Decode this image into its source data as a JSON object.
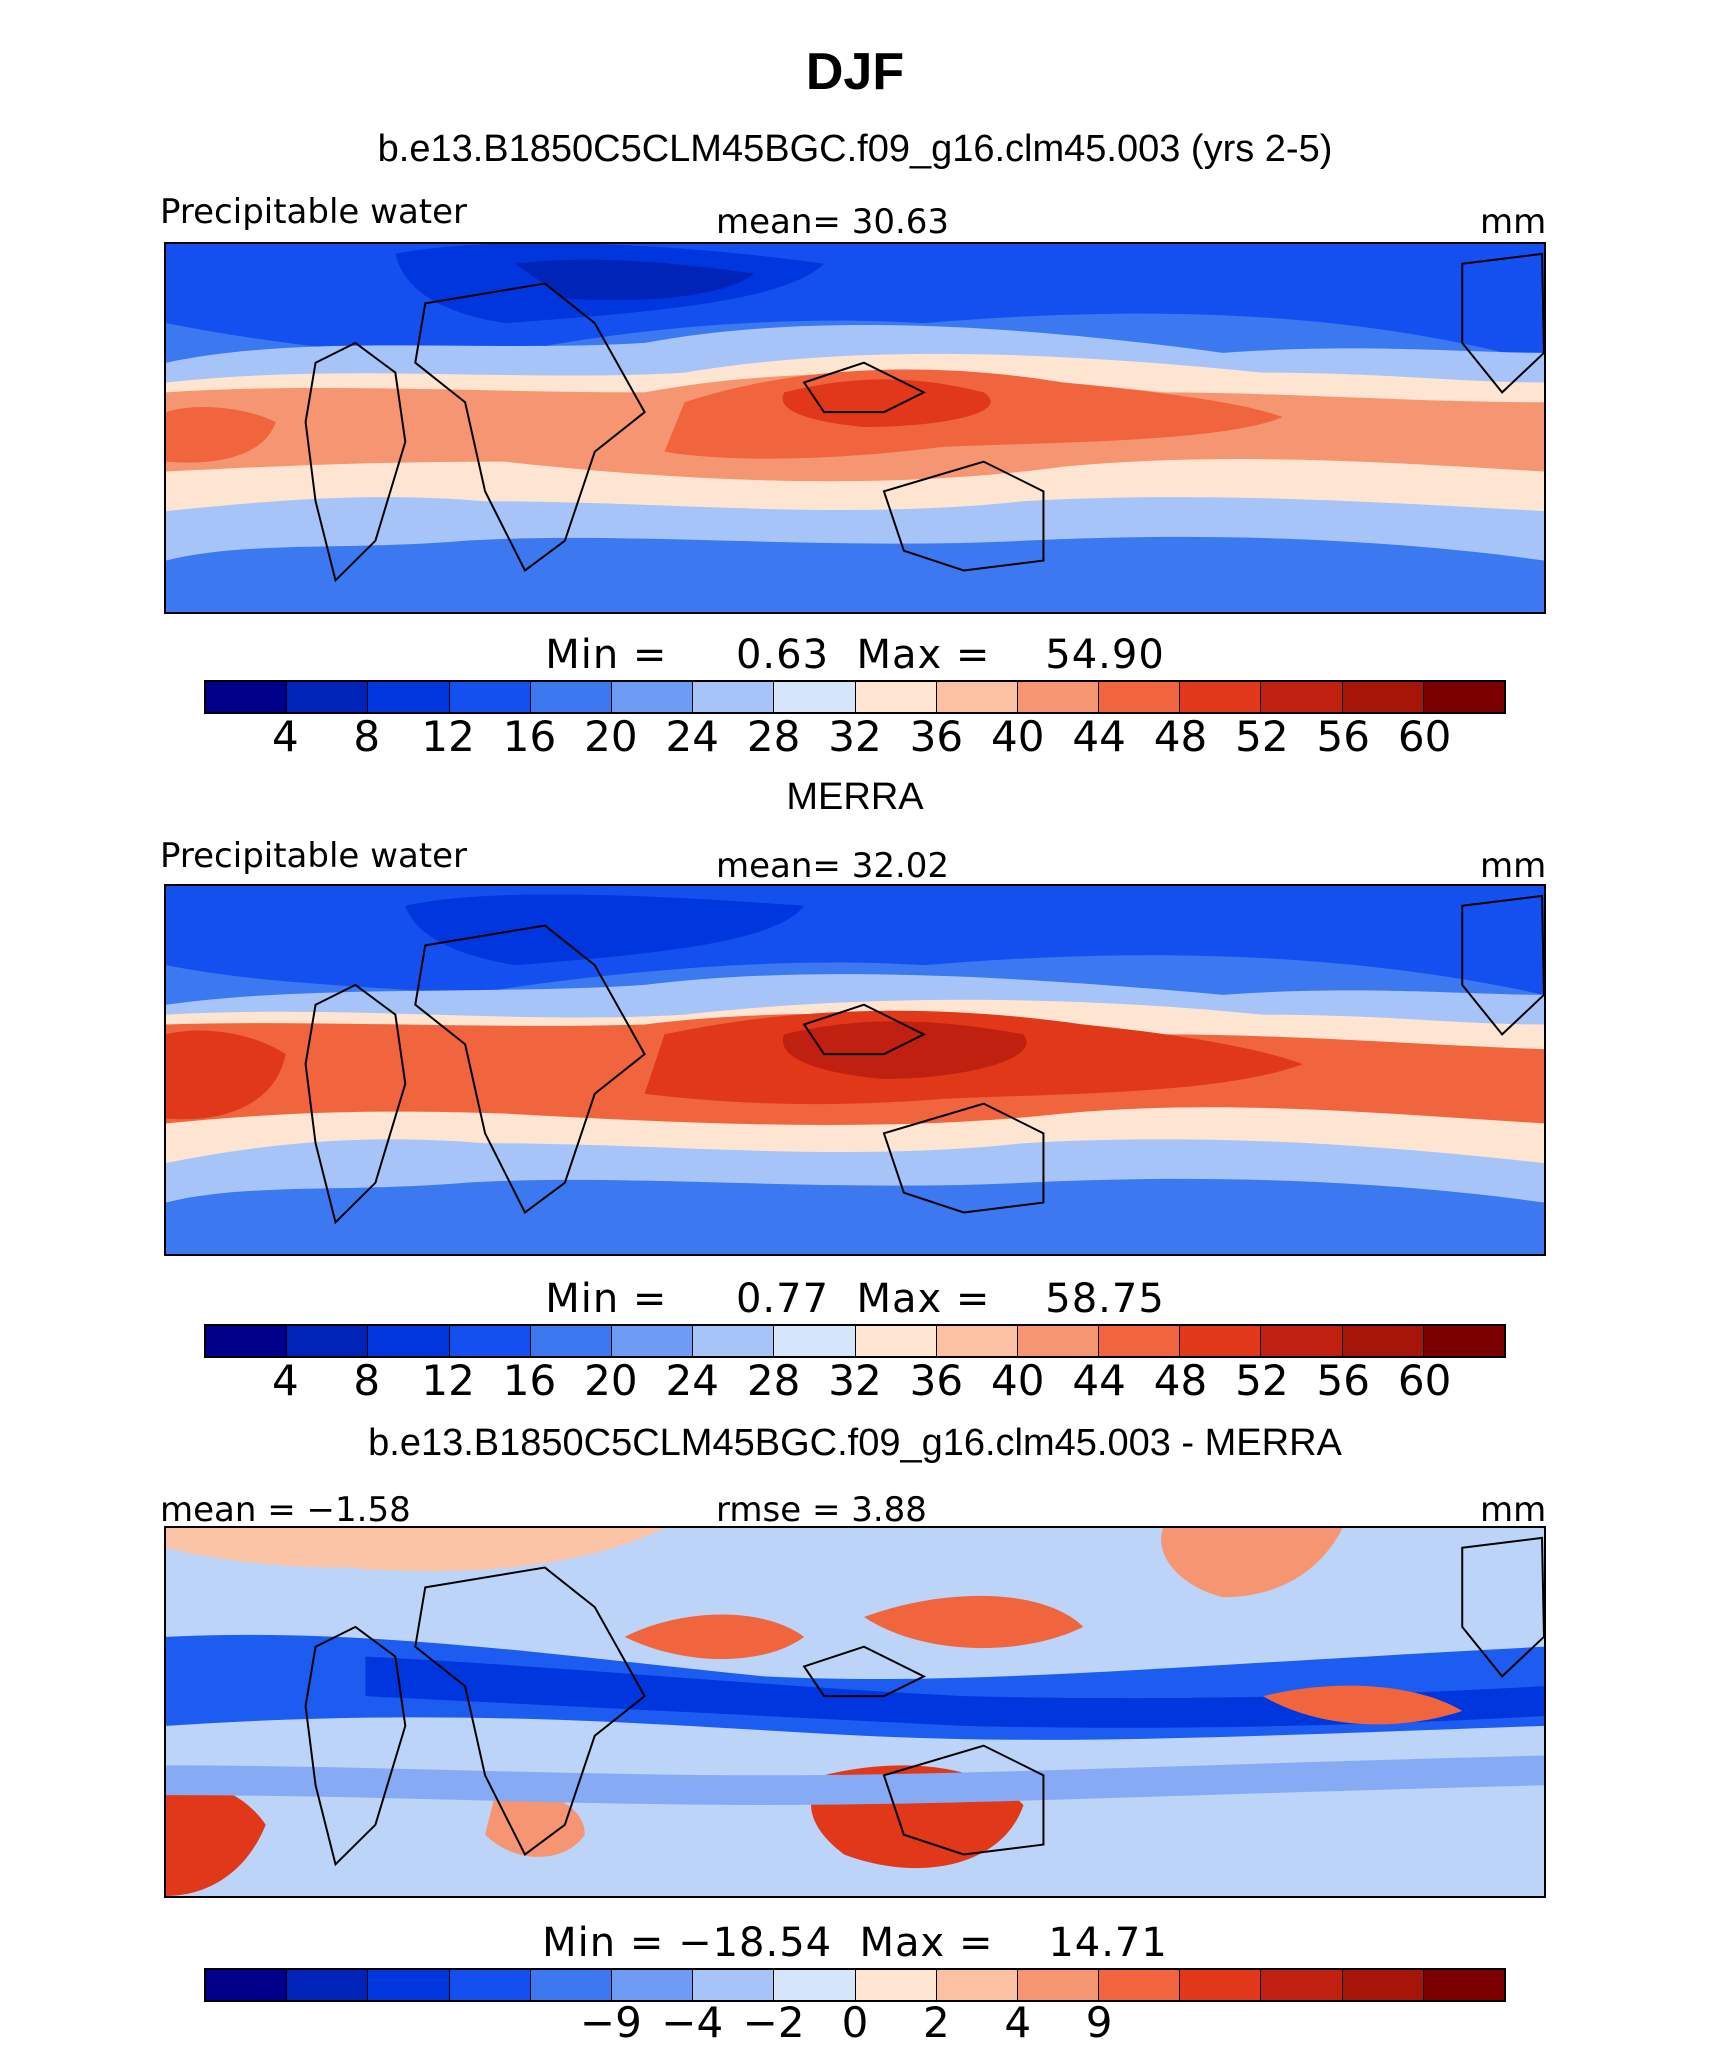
{
  "figure": {
    "title": "DJF",
    "subtitles": [
      "b.e13.B1850C5CLM45BGC.f09_g16.clm45.003 (yrs 2-5)",
      "MERRA",
      "b.e13.B1850C5CLM45BGC.f09_g16.clm45.003 - MERRA"
    ]
  },
  "panels": [
    {
      "left_label": "Precipitable water",
      "center_label": "mean=   30.63",
      "right_label": "mm",
      "minmax": "Min =     0.63  Max =    54.90",
      "colorbar_ticks": [
        "4",
        "8",
        "12",
        "16",
        "20",
        "24",
        "28",
        "32",
        "36",
        "40",
        "44",
        "48",
        "52",
        "56",
        "60"
      ]
    },
    {
      "left_label": "Precipitable water",
      "center_label": "mean=   32.02",
      "right_label": "mm",
      "minmax": "Min =     0.77  Max =    58.75",
      "colorbar_ticks": [
        "4",
        "8",
        "12",
        "16",
        "20",
        "24",
        "28",
        "32",
        "36",
        "40",
        "44",
        "48",
        "52",
        "56",
        "60"
      ]
    },
    {
      "left_label": "mean =  −1.58",
      "center_label": "rmse =    3.88",
      "right_label": "mm",
      "minmax": "Min = −18.54  Max =    14.71",
      "colorbar_ticks": [
        "−9",
        "−4",
        "−2",
        "0",
        "2",
        "4",
        "9"
      ]
    }
  ],
  "colors": {
    "palette_16": [
      "#00008a",
      "#0024b8",
      "#0036dd",
      "#1450f0",
      "#3c78f0",
      "#6e9cf4",
      "#a6c4f8",
      "#d6e6fa",
      "#fde5d2",
      "#fbc1a2",
      "#f69572",
      "#f0643e",
      "#e03818",
      "#c02010",
      "#a51508",
      "#7a0000"
    ],
    "palette_8": [
      "#00008a",
      "#0036dd",
      "#1c5cf0",
      "#4c84f2",
      "#86aaf4",
      "#bcd4f8",
      "#e0ecfc",
      "#fde6d6",
      "#fbc4a6",
      "#f69572",
      "#f0643e",
      "#e03818",
      "#c02010",
      "#a51508",
      "#7a0000"
    ]
  },
  "chart_data": [
    {
      "type": "heatmap",
      "title": "b.e13.B1850C5CLM45BGC.f09_g16.clm45.003 (yrs 2-5)",
      "variable": "Precipitable water",
      "units": "mm",
      "mean": 30.63,
      "min": 0.63,
      "max": 54.9,
      "contour_levels": [
        4,
        8,
        12,
        16,
        20,
        24,
        28,
        32,
        36,
        40,
        44,
        48,
        52,
        56,
        60
      ]
    },
    {
      "type": "heatmap",
      "title": "MERRA",
      "variable": "Precipitable water",
      "units": "mm",
      "mean": 32.02,
      "min": 0.77,
      "max": 58.75,
      "contour_levels": [
        4,
        8,
        12,
        16,
        20,
        24,
        28,
        32,
        36,
        40,
        44,
        48,
        52,
        56,
        60
      ]
    },
    {
      "type": "heatmap",
      "title": "b.e13.B1850C5CLM45BGC.f09_g16.clm45.003 - MERRA",
      "units": "mm",
      "mean": -1.58,
      "rmse": 3.88,
      "min": -18.54,
      "max": 14.71,
      "contour_levels": [
        -9,
        -4,
        -2,
        0,
        2,
        4,
        9
      ]
    }
  ]
}
